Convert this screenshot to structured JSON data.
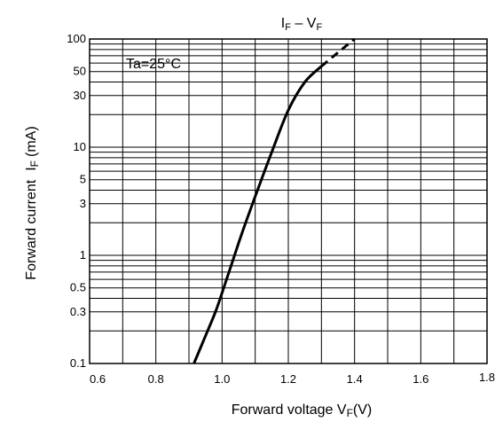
{
  "chart_data": {
    "type": "line",
    "title": "IF – VF",
    "title_main_1": "I",
    "title_sub_1": "F",
    "title_sep": " – V",
    "title_sub_2": "F",
    "annotation": "Ta=25°C",
    "xlabel": "Forward voltage VF(V)",
    "xlabel_main": "Forward voltage V",
    "xlabel_sub": "F",
    "xlabel_end": "(V)",
    "ylabel": "Forward current IF (mA)",
    "ylabel_main": "Forward current",
    "ylabel_i": "I",
    "ylabel_sub": "F",
    "ylabel_unit": "(mA)",
    "xlim": [
      0.6,
      1.8
    ],
    "ylim": [
      0.1,
      100
    ],
    "yscale": "log",
    "grid": true,
    "x_ticks": [
      0.6,
      0.8,
      1.0,
      1.2,
      1.4,
      1.6,
      1.8
    ],
    "x_tick_labels": [
      "0.6",
      "0.8",
      "1.0",
      "1.2",
      "1.4",
      "1.6",
      "1.8"
    ],
    "y_ticks": [
      0.1,
      0.3,
      0.5,
      1,
      3,
      5,
      10,
      30,
      50,
      100
    ],
    "y_tick_labels": [
      "0.1",
      "0.3",
      "0.5",
      "1",
      "3",
      "5",
      "10",
      "30",
      "50",
      "100"
    ],
    "series": [
      {
        "style": "solid",
        "x": [
          0.915,
          0.95,
          0.98,
          1.0,
          1.03,
          1.06,
          1.1,
          1.15,
          1.2,
          1.25,
          1.3
        ],
        "y": [
          0.1,
          0.18,
          0.3,
          0.45,
          0.85,
          1.6,
          3.5,
          9,
          22,
          40,
          56
        ]
      },
      {
        "style": "dashed",
        "x": [
          1.3,
          1.35,
          1.4
        ],
        "y": [
          56,
          75,
          100
        ]
      }
    ]
  }
}
